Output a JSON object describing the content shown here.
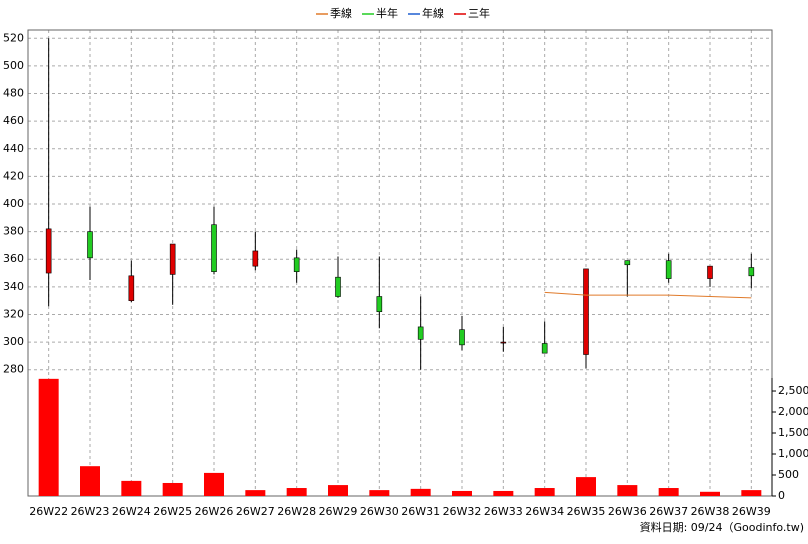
{
  "chart_data": {
    "type": "candlestick",
    "categories": [
      "26W22",
      "26W23",
      "26W24",
      "26W25",
      "26W26",
      "26W27",
      "26W28",
      "26W29",
      "26W30",
      "26W31",
      "26W32",
      "26W33",
      "26W34",
      "26W35",
      "26W36",
      "26W37",
      "26W38",
      "26W39"
    ],
    "open": [
      350,
      380,
      330,
      349,
      385,
      355,
      361,
      347,
      333,
      311,
      309,
      300,
      299,
      291,
      359,
      359,
      346,
      354
    ],
    "high": [
      520,
      398,
      359,
      371,
      398,
      380,
      367,
      362,
      362,
      333,
      319,
      311,
      315,
      353,
      359,
      364,
      355,
      364
    ],
    "low": [
      326,
      345,
      329,
      327,
      349,
      352,
      343,
      332,
      310,
      280,
      294,
      293,
      292,
      281,
      333,
      343,
      340,
      339
    ],
    "close": [
      382,
      361,
      348,
      371,
      351,
      366,
      351,
      333,
      322,
      302,
      298,
      300,
      292,
      353,
      356,
      346,
      355,
      348
    ],
    "up_color": "#e00000",
    "down_color": "#22cc22",
    "series": [
      {
        "name": "季線",
        "color": "#e07a2a",
        "values": [
          null,
          null,
          null,
          null,
          null,
          null,
          null,
          null,
          null,
          null,
          null,
          null,
          336,
          334,
          334,
          334,
          333,
          332
        ]
      },
      {
        "name": "半年",
        "color": "#22cc22",
        "values": [
          null,
          null,
          null,
          null,
          null,
          null,
          null,
          null,
          null,
          null,
          null,
          null,
          null,
          null,
          null,
          null,
          null,
          null
        ]
      },
      {
        "name": "年線",
        "color": "#1f5fd0",
        "values": [
          null,
          null,
          null,
          null,
          null,
          null,
          null,
          null,
          null,
          null,
          null,
          null,
          null,
          null,
          null,
          null,
          null,
          null
        ]
      },
      {
        "name": "三年",
        "color": "#e00000",
        "values": [
          null,
          null,
          null,
          null,
          null,
          null,
          null,
          null,
          null,
          null,
          null,
          null,
          null,
          null,
          null,
          null,
          null,
          null
        ]
      }
    ],
    "ylim": [
      274,
      526
    ],
    "yticks": [
      280,
      300,
      320,
      340,
      360,
      380,
      400,
      420,
      440,
      460,
      480,
      500,
      520
    ],
    "volume": {
      "color": "#ff0000",
      "values": [
        2790,
        710,
        360,
        310,
        550,
        140,
        190,
        260,
        140,
        170,
        120,
        120,
        190,
        450,
        260,
        190,
        100,
        140
      ]
    },
    "y2lim": [
      0,
      2810
    ],
    "y2ticks": [
      0,
      500,
      {
        "value": 1000,
        "label": "1,000"
      },
      {
        "value": 1500,
        "label": "1,500"
      },
      {
        "value": 2000,
        "label": "2,000"
      },
      {
        "value": 2500,
        "label": "2,500"
      }
    ],
    "grid": true,
    "footer": "資料日期: 09/24（Goodinfo.tw)"
  }
}
